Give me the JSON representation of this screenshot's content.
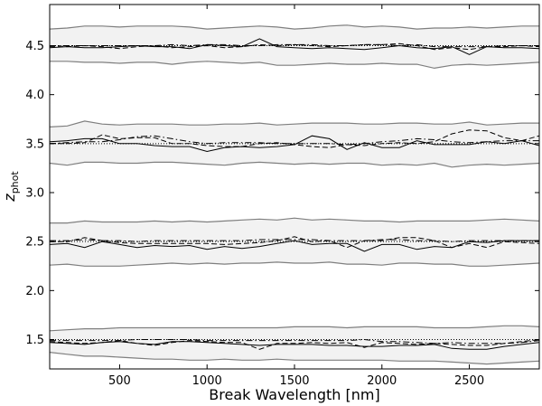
{
  "chart_data": {
    "type": "line",
    "xlabel": "Break Wavelength [nm]",
    "ylabel": "z_phot",
    "ylabel_main": "z",
    "ylabel_sub": "phot",
    "xlim": [
      100,
      2900
    ],
    "ylim": [
      1.2,
      4.92
    ],
    "x_ticks": [
      500,
      1000,
      1500,
      2000,
      2500
    ],
    "y_ticks": [
      1.5,
      2.0,
      2.5,
      3.0,
      3.5,
      4.0,
      4.5
    ],
    "x_tick_labels": [
      "500",
      "1000",
      "1500",
      "2000",
      "2500"
    ],
    "y_tick_labels": [
      "1.5",
      "2.0",
      "2.5",
      "3.0",
      "3.5",
      "4.0",
      "4.5"
    ],
    "grid": false,
    "legend": "none",
    "x": [
      100,
      200,
      300,
      400,
      500,
      600,
      700,
      800,
      900,
      1000,
      1100,
      1200,
      1300,
      1400,
      1500,
      1600,
      1700,
      1800,
      1900,
      2000,
      2100,
      2200,
      2300,
      2400,
      2500,
      2600,
      2700,
      2800,
      2900
    ],
    "groups": [
      {
        "true_z": 4.5,
        "upper": [
          4.67,
          4.68,
          4.7,
          4.7,
          4.69,
          4.7,
          4.7,
          4.7,
          4.69,
          4.67,
          4.68,
          4.69,
          4.7,
          4.69,
          4.67,
          4.68,
          4.7,
          4.71,
          4.69,
          4.7,
          4.69,
          4.67,
          4.68,
          4.68,
          4.69,
          4.68,
          4.69,
          4.7,
          4.7
        ],
        "lower": [
          4.34,
          4.34,
          4.33,
          4.33,
          4.32,
          4.33,
          4.33,
          4.31,
          4.33,
          4.34,
          4.33,
          4.32,
          4.33,
          4.3,
          4.3,
          4.31,
          4.32,
          4.31,
          4.31,
          4.32,
          4.31,
          4.31,
          4.27,
          4.3,
          4.31,
          4.3,
          4.31,
          4.32,
          4.33
        ],
        "solid": [
          4.48,
          4.49,
          4.48,
          4.48,
          4.49,
          4.5,
          4.49,
          4.49,
          4.47,
          4.51,
          4.5,
          4.49,
          4.57,
          4.49,
          4.48,
          4.47,
          4.48,
          4.47,
          4.46,
          4.48,
          4.5,
          4.48,
          4.47,
          4.49,
          4.41,
          4.49,
          4.48,
          4.48,
          4.47
        ],
        "dashed": [
          4.49,
          4.49,
          4.5,
          4.49,
          4.47,
          4.49,
          4.5,
          4.48,
          4.49,
          4.5,
          4.48,
          4.49,
          4.51,
          4.5,
          4.51,
          4.5,
          4.49,
          4.5,
          4.51,
          4.51,
          4.52,
          4.5,
          4.46,
          4.48,
          4.46,
          4.49,
          4.49,
          4.5,
          4.49
        ],
        "dashdot": [
          4.5,
          4.5,
          4.5,
          4.5,
          4.5,
          4.5,
          4.5,
          4.51,
          4.5,
          4.51,
          4.51,
          4.5,
          4.5,
          4.51,
          4.51,
          4.51,
          4.5,
          4.5,
          4.51,
          4.51,
          4.5,
          4.51,
          4.49,
          4.49,
          4.49,
          4.49,
          4.5,
          4.5,
          4.5
        ]
      },
      {
        "true_z": 3.5,
        "upper": [
          3.67,
          3.68,
          3.73,
          3.7,
          3.69,
          3.7,
          3.7,
          3.7,
          3.69,
          3.69,
          3.7,
          3.7,
          3.71,
          3.69,
          3.7,
          3.71,
          3.71,
          3.71,
          3.7,
          3.7,
          3.71,
          3.71,
          3.7,
          3.7,
          3.72,
          3.69,
          3.7,
          3.71,
          3.71
        ],
        "lower": [
          3.3,
          3.28,
          3.31,
          3.31,
          3.3,
          3.3,
          3.31,
          3.31,
          3.3,
          3.29,
          3.28,
          3.3,
          3.31,
          3.3,
          3.29,
          3.3,
          3.29,
          3.3,
          3.3,
          3.28,
          3.29,
          3.28,
          3.3,
          3.26,
          3.28,
          3.29,
          3.28,
          3.29,
          3.3
        ],
        "solid": [
          3.52,
          3.53,
          3.55,
          3.55,
          3.5,
          3.5,
          3.48,
          3.47,
          3.47,
          3.42,
          3.46,
          3.47,
          3.46,
          3.47,
          3.49,
          3.58,
          3.55,
          3.44,
          3.51,
          3.46,
          3.46,
          3.53,
          3.49,
          3.49,
          3.49,
          3.52,
          3.5,
          3.53,
          3.48
        ],
        "dashed": [
          3.5,
          3.5,
          3.51,
          3.59,
          3.55,
          3.56,
          3.56,
          3.5,
          3.5,
          3.48,
          3.47,
          3.47,
          3.5,
          3.51,
          3.49,
          3.47,
          3.46,
          3.49,
          3.48,
          3.5,
          3.51,
          3.5,
          3.52,
          3.6,
          3.64,
          3.63,
          3.56,
          3.53,
          3.58
        ],
        "dashdot": [
          3.5,
          3.51,
          3.52,
          3.52,
          3.54,
          3.57,
          3.58,
          3.55,
          3.52,
          3.5,
          3.51,
          3.51,
          3.51,
          3.5,
          3.5,
          3.5,
          3.5,
          3.49,
          3.5,
          3.52,
          3.53,
          3.55,
          3.54,
          3.52,
          3.51,
          3.52,
          3.53,
          3.53,
          3.53
        ]
      },
      {
        "true_z": 2.5,
        "upper": [
          2.69,
          2.69,
          2.71,
          2.7,
          2.7,
          2.7,
          2.71,
          2.7,
          2.71,
          2.7,
          2.71,
          2.72,
          2.73,
          2.72,
          2.74,
          2.72,
          2.73,
          2.72,
          2.71,
          2.71,
          2.7,
          2.71,
          2.71,
          2.71,
          2.71,
          2.72,
          2.73,
          2.72,
          2.71
        ],
        "lower": [
          2.26,
          2.27,
          2.25,
          2.25,
          2.25,
          2.26,
          2.27,
          2.28,
          2.27,
          2.28,
          2.27,
          2.28,
          2.28,
          2.29,
          2.28,
          2.28,
          2.29,
          2.27,
          2.27,
          2.26,
          2.28,
          2.28,
          2.27,
          2.27,
          2.25,
          2.25,
          2.26,
          2.27,
          2.28
        ],
        "solid": [
          2.47,
          2.48,
          2.44,
          2.5,
          2.47,
          2.44,
          2.46,
          2.45,
          2.46,
          2.42,
          2.45,
          2.43,
          2.45,
          2.48,
          2.51,
          2.47,
          2.48,
          2.48,
          2.4,
          2.47,
          2.47,
          2.42,
          2.45,
          2.44,
          2.5,
          2.49,
          2.51,
          2.51,
          2.51
        ],
        "dashed": [
          2.5,
          2.5,
          2.54,
          2.51,
          2.49,
          2.48,
          2.48,
          2.48,
          2.48,
          2.48,
          2.47,
          2.48,
          2.49,
          2.51,
          2.55,
          2.5,
          2.51,
          2.44,
          2.51,
          2.51,
          2.54,
          2.54,
          2.51,
          2.44,
          2.48,
          2.44,
          2.5,
          2.49,
          2.48
        ],
        "dashdot": [
          2.51,
          2.51,
          2.52,
          2.51,
          2.51,
          2.5,
          2.51,
          2.51,
          2.51,
          2.51,
          2.51,
          2.51,
          2.52,
          2.52,
          2.52,
          2.52,
          2.51,
          2.51,
          2.51,
          2.52,
          2.52,
          2.51,
          2.51,
          2.5,
          2.51,
          2.51,
          2.51,
          2.51,
          2.51
        ]
      },
      {
        "true_z": 1.5,
        "upper": [
          1.59,
          1.6,
          1.61,
          1.61,
          1.62,
          1.62,
          1.62,
          1.62,
          1.62,
          1.62,
          1.62,
          1.62,
          1.62,
          1.62,
          1.63,
          1.63,
          1.63,
          1.62,
          1.63,
          1.63,
          1.63,
          1.63,
          1.62,
          1.62,
          1.62,
          1.63,
          1.64,
          1.64,
          1.63
        ],
        "lower": [
          1.37,
          1.35,
          1.33,
          1.33,
          1.32,
          1.31,
          1.3,
          1.3,
          1.29,
          1.29,
          1.3,
          1.29,
          1.29,
          1.3,
          1.29,
          1.29,
          1.29,
          1.29,
          1.29,
          1.29,
          1.28,
          1.28,
          1.28,
          1.27,
          1.26,
          1.25,
          1.26,
          1.27,
          1.28
        ],
        "solid": [
          1.47,
          1.46,
          1.45,
          1.47,
          1.48,
          1.46,
          1.45,
          1.48,
          1.48,
          1.47,
          1.46,
          1.45,
          1.44,
          1.45,
          1.45,
          1.45,
          1.44,
          1.44,
          1.43,
          1.43,
          1.44,
          1.44,
          1.45,
          1.41,
          1.4,
          1.4,
          1.43,
          1.45,
          1.47
        ],
        "dashed": [
          1.48,
          1.47,
          1.46,
          1.47,
          1.49,
          1.46,
          1.44,
          1.47,
          1.49,
          1.48,
          1.47,
          1.47,
          1.4,
          1.46,
          1.46,
          1.47,
          1.46,
          1.47,
          1.42,
          1.47,
          1.46,
          1.45,
          1.46,
          1.45,
          1.44,
          1.44,
          1.46,
          1.48,
          1.5
        ],
        "dashdot": [
          1.49,
          1.49,
          1.49,
          1.49,
          1.49,
          1.5,
          1.5,
          1.5,
          1.5,
          1.49,
          1.49,
          1.49,
          1.49,
          1.49,
          1.49,
          1.49,
          1.49,
          1.49,
          1.5,
          1.48,
          1.48,
          1.47,
          1.46,
          1.47,
          1.46,
          1.46,
          1.46,
          1.47,
          1.49
        ]
      }
    ]
  },
  "style": {
    "band_fill": "#f2f2f2",
    "band_edge": "#7f7f7f",
    "line_color": "#000000",
    "axis_color": "#000000"
  }
}
